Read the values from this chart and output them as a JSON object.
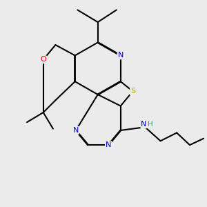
{
  "background_color": "#ebebeb",
  "bond_color": "#000000",
  "atom_colors": {
    "N": "#0000cc",
    "O": "#dd0000",
    "S": "#bbaa00",
    "H": "#449999",
    "C": "#000000"
  },
  "figsize": [
    3.0,
    3.0
  ],
  "dpi": 100
}
